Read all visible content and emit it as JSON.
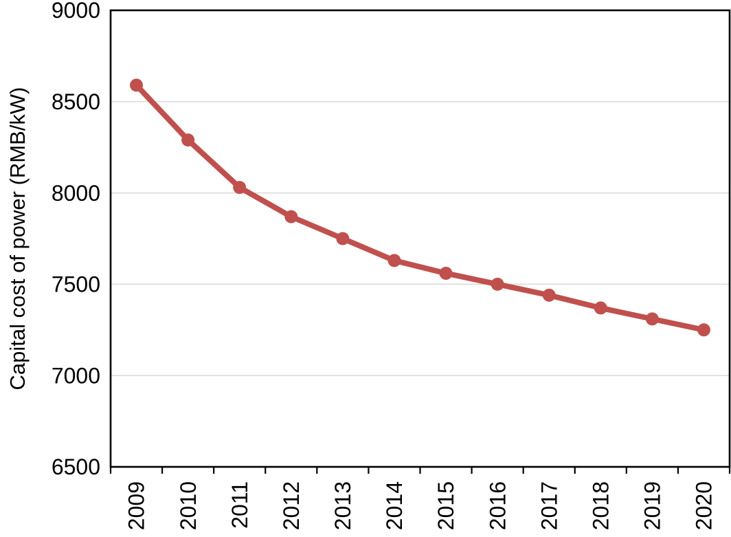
{
  "figure": {
    "background": "#ffffff"
  },
  "chart_data": {
    "type": "line",
    "title": "",
    "xlabel": "",
    "ylabel": "Capital cost of power (RMB/kW)",
    "categories": [
      "2009",
      "2010",
      "2011",
      "2012",
      "2013",
      "2014",
      "2015",
      "2016",
      "2017",
      "2018",
      "2019",
      "2020"
    ],
    "series": [
      {
        "color": "#c0504d",
        "marker": "circle",
        "values": [
          8590,
          8290,
          8030,
          7870,
          7750,
          7630,
          7560,
          7500,
          7440,
          7370,
          7310,
          7250
        ]
      }
    ],
    "ylim": [
      6500,
      9000
    ],
    "yticks": [
      6500,
      7000,
      7500,
      8000,
      8500,
      9000
    ],
    "grid": "horizontal",
    "gridline_color": "#d9d9d9",
    "axis_color": "#000000",
    "legend": "none"
  }
}
